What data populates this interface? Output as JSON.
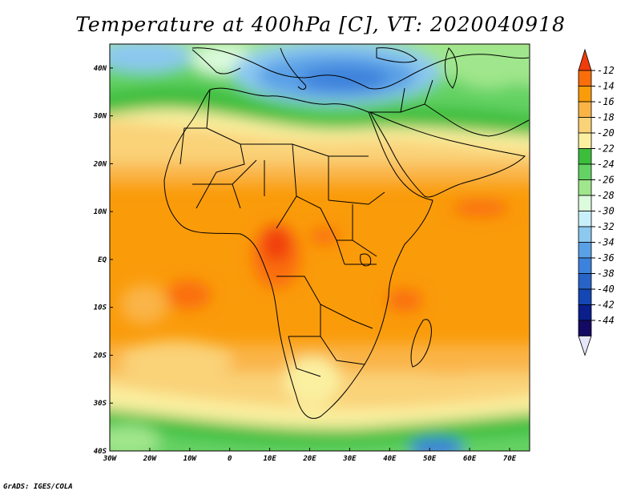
{
  "title": "Temperature at 400hPa [C], VT: 2020040918",
  "credit": "GrADS: IGES/COLA",
  "map": {
    "lon_range": [
      -30,
      75
    ],
    "lat_range": [
      -40,
      45
    ],
    "lon_ticks": [
      {
        "value": -30,
        "label": "30W"
      },
      {
        "value": -20,
        "label": "20W"
      },
      {
        "value": -10,
        "label": "10W"
      },
      {
        "value": 0,
        "label": "0"
      },
      {
        "value": 10,
        "label": "10E"
      },
      {
        "value": 20,
        "label": "20E"
      },
      {
        "value": 30,
        "label": "30E"
      },
      {
        "value": 40,
        "label": "40E"
      },
      {
        "value": 50,
        "label": "50E"
      },
      {
        "value": 60,
        "label": "60E"
      },
      {
        "value": 70,
        "label": "70E"
      }
    ],
    "lat_ticks": [
      {
        "value": 40,
        "label": "40N"
      },
      {
        "value": 30,
        "label": "30N"
      },
      {
        "value": 20,
        "label": "20N"
      },
      {
        "value": 10,
        "label": "10N"
      },
      {
        "value": 0,
        "label": "EQ"
      },
      {
        "value": -10,
        "label": "10S"
      },
      {
        "value": -20,
        "label": "20S"
      },
      {
        "value": -30,
        "label": "30S"
      },
      {
        "value": -40,
        "label": "40S"
      }
    ]
  },
  "colorbar": {
    "labels": [
      "-12",
      "-14",
      "-16",
      "-18",
      "-20",
      "-22",
      "-24",
      "-26",
      "-28",
      "-30",
      "-32",
      "-34",
      "-36",
      "-38",
      "-40",
      "-42",
      "-44"
    ],
    "colors": [
      "#f03c0a",
      "#fa6e0a",
      "#fa9b0a",
      "#fab446",
      "#fad278",
      "#faf0a0",
      "#3cbe3c",
      "#64d264",
      "#a0e68c",
      "#dcfadc",
      "#c8f0fa",
      "#8cc8f0",
      "#5aa0e6",
      "#3c82dc",
      "#2864c8",
      "#1446b4",
      "#0a1e8c",
      "#140a64",
      "#e6e6fa"
    ]
  }
}
